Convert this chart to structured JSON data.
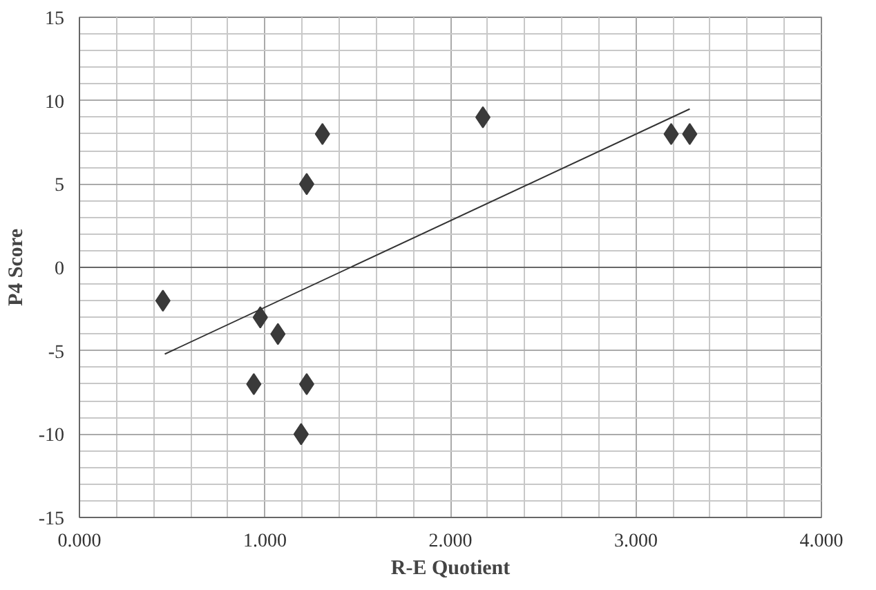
{
  "chart_data": {
    "type": "scatter",
    "xlabel": "R-E Quotient",
    "ylabel": "P4 Score",
    "xlim": [
      0,
      4
    ],
    "ylim": [
      -15,
      15
    ],
    "xticks": [
      {
        "value": 0,
        "label": "0.000"
      },
      {
        "value": 1,
        "label": "1.000"
      },
      {
        "value": 2,
        "label": "2.000"
      },
      {
        "value": 3,
        "label": "3.000"
      },
      {
        "value": 4,
        "label": "4.000"
      }
    ],
    "yticks": [
      -15,
      -10,
      -5,
      0,
      5,
      10,
      15
    ],
    "grid": true,
    "marker": "diamond",
    "series": [
      {
        "type": "scatter",
        "color": "#3a3a3a",
        "x": [
          0.45,
          0.94,
          0.975,
          1.07,
          1.195,
          1.225,
          1.225,
          1.31,
          2.175,
          3.19,
          3.29
        ],
        "values": [
          -2,
          -7,
          -3,
          -4,
          -10,
          -7,
          5,
          8,
          9,
          8,
          8
        ]
      },
      {
        "type": "line",
        "color": "#333333",
        "line_style": "solid",
        "marker": "none",
        "x": [
          0.46,
          3.29
        ],
        "values": [
          -5.2,
          9.5
        ]
      }
    ]
  }
}
